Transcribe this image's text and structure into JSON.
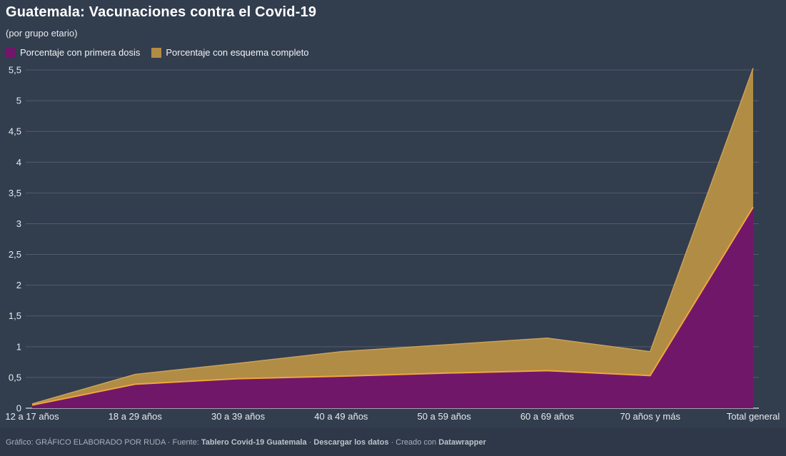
{
  "header": {
    "title": "Guatemala: Vacunaciones contra el Covid-19",
    "subtitle": "(por grupo etario)"
  },
  "legend": {
    "items": [
      {
        "label": "Porcentaje con primera dosis",
        "color": "#71176A"
      },
      {
        "label": "Porcentaje con esquema completo",
        "color": "#B18C44"
      }
    ]
  },
  "chart_data": {
    "type": "area",
    "stacked": true,
    "title": "Guatemala: Vacunaciones contra el Covid-19",
    "subtitle": "(por grupo etario)",
    "categories": [
      "12 a 17 años",
      "18 a 29 años",
      "30 a 39 años",
      "40 a 49 años",
      "50 a 59 años",
      "60 a 69 años",
      "70 años y más",
      "Total general"
    ],
    "series": [
      {
        "name": "Porcentaje con primera dosis",
        "fill": "#71176A",
        "line_color": "#F0A73C",
        "values": [
          0.05,
          0.39,
          0.48,
          0.52,
          0.57,
          0.61,
          0.53,
          3.27
        ]
      },
      {
        "name": "Porcentaje con esquema completo",
        "fill": "#B18C44",
        "line_color": "#C9A25A",
        "values": [
          0.02,
          0.16,
          0.25,
          0.4,
          0.46,
          0.53,
          0.39,
          2.26
        ]
      }
    ],
    "stack_totals": [
      0.07,
      0.55,
      0.73,
      0.92,
      1.03,
      1.14,
      0.92,
      5.53
    ],
    "ylim": [
      0,
      5.5
    ],
    "ytick_step": 0.5,
    "ytick_labels": [
      "0",
      "0,5",
      "1",
      "1,5",
      "2",
      "2,5",
      "3",
      "3,5",
      "4",
      "4,5",
      "5",
      "5,5"
    ],
    "grid": true,
    "legend_position": "top-left",
    "colors": {
      "background": "#323D4E",
      "footer_background": "#2E3848",
      "gridline": "rgba(255,255,255,0.16)",
      "axis_line": "#DCE0E5",
      "tick_text": "#E8EBEE"
    }
  },
  "footer": {
    "segments": [
      {
        "name": "credit-text",
        "text": "Gráfico: GRÁFICO ELABORADO POR RUDA · Fuente: ",
        "bold": false,
        "link": false
      },
      {
        "name": "source-link",
        "text": "Tablero Covid-19 Guatemala",
        "bold": true,
        "link": true
      },
      {
        "name": "separator",
        "text": " · ",
        "bold": false,
        "link": false
      },
      {
        "name": "download-link",
        "text": "Descargar los datos",
        "bold": true,
        "link": true
      },
      {
        "name": "created-with-text",
        "text": " · Creado con ",
        "bold": false,
        "link": false
      },
      {
        "name": "datawrapper-link",
        "text": "Datawrapper",
        "bold": true,
        "link": true
      }
    ]
  }
}
